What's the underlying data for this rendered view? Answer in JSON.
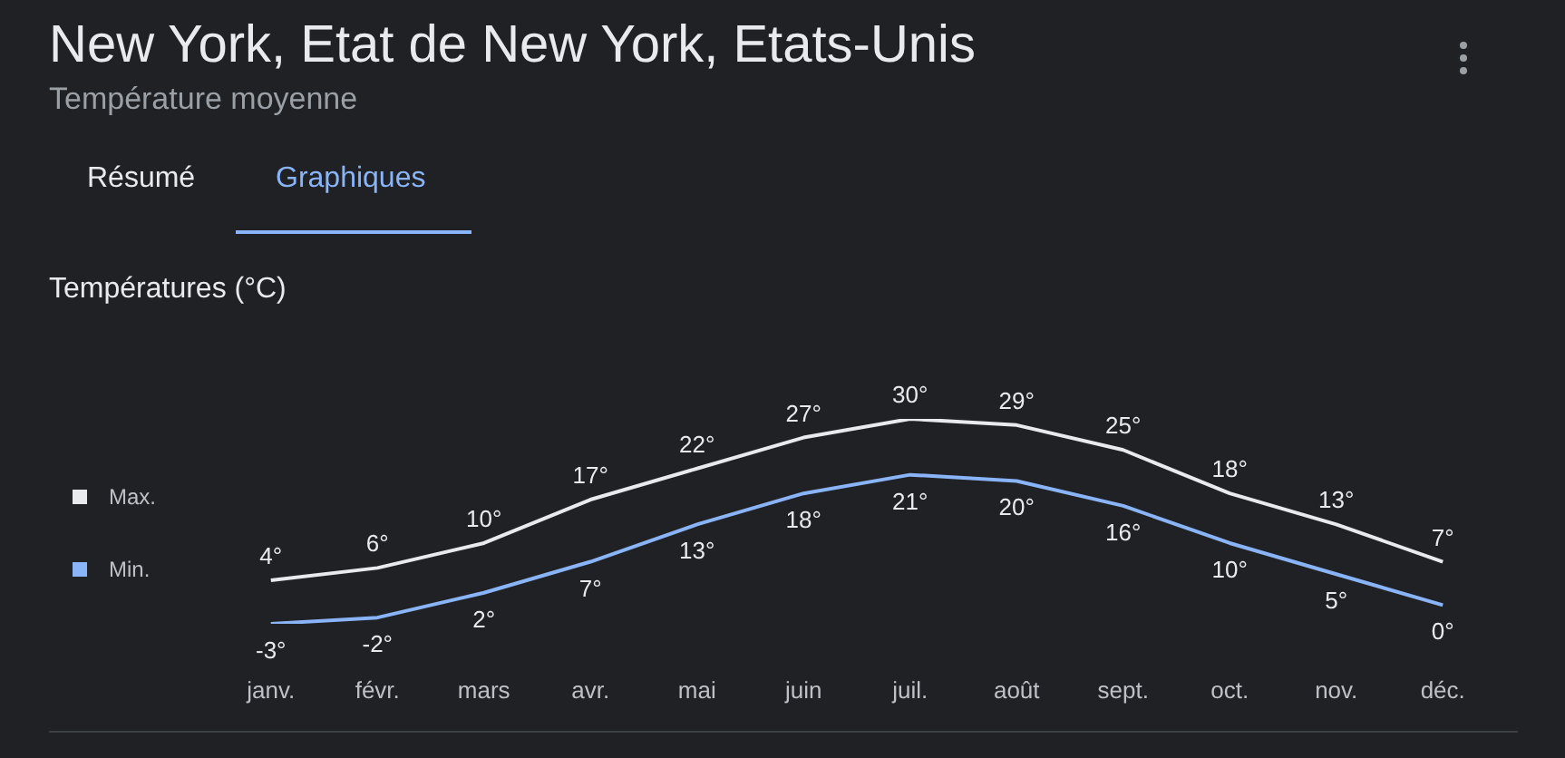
{
  "chart_data": {
    "type": "line",
    "title": "New York, Etat de New York, Etats-Unis",
    "subtitle": "Température moyenne",
    "ylabel": "Températures (°C)",
    "annotations": [
      "Résumé",
      "Graphiques"
    ],
    "categories": [
      "janv.",
      "févr.",
      "mars",
      "avr.",
      "mai",
      "juin",
      "juil.",
      "août",
      "sept.",
      "oct.",
      "nov.",
      "déc."
    ],
    "series": [
      {
        "name": "Max.",
        "color": "#e8eaed",
        "values": [
          4,
          6,
          10,
          17,
          22,
          27,
          30,
          29,
          25,
          18,
          13,
          7
        ],
        "value_labels": [
          "4°",
          "6°",
          "10°",
          "17°",
          "22°",
          "27°",
          "30°",
          "29°",
          "25°",
          "18°",
          "13°",
          "7°"
        ]
      },
      {
        "name": "Min.",
        "color": "#8ab4f8",
        "values": [
          -3,
          -2,
          2,
          7,
          13,
          18,
          21,
          20,
          16,
          10,
          5,
          0
        ],
        "value_labels": [
          "-3°",
          "-2°",
          "2°",
          "7°",
          "13°",
          "18°",
          "21°",
          "20°",
          "16°",
          "10°",
          "5°",
          "0°"
        ]
      }
    ],
    "legend": "left",
    "marker": "none"
  }
}
